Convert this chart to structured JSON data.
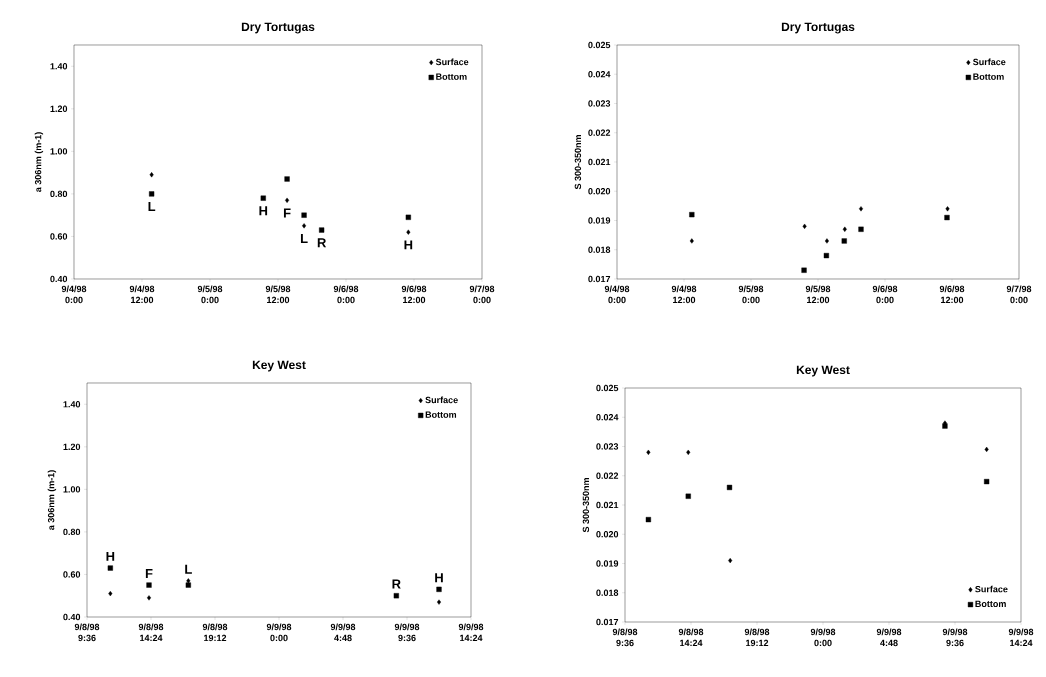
{
  "chart_data": [
    {
      "type": "scatter",
      "title": "Dry Tortugas",
      "ylabel": "a 306nm (m-1)",
      "xlim": [
        "1998-09-04T00:00",
        "1998-09-07T00:00"
      ],
      "xticks": [
        {
          "value": "1998-09-04T00:00",
          "label": "9/4/98 0:00"
        },
        {
          "value": "1998-09-04T12:00",
          "label": "9/4/98 12:00"
        },
        {
          "value": "1998-09-05T00:00",
          "label": "9/5/98 0:00"
        },
        {
          "value": "1998-09-05T12:00",
          "label": "9/5/98 12:00"
        },
        {
          "value": "1998-09-06T00:00",
          "label": "9/6/98 0:00"
        },
        {
          "value": "1998-09-06T12:00",
          "label": "9/6/98 12:00"
        },
        {
          "value": "1998-09-07T00:00",
          "label": "9/7/98 0:00"
        }
      ],
      "ylim": [
        0.4,
        1.5
      ],
      "yticks": [
        {
          "value": 0.4,
          "label": "0.40"
        },
        {
          "value": 0.6,
          "label": "0.60"
        },
        {
          "value": 0.8,
          "label": "0.80"
        },
        {
          "value": 1.0,
          "label": "1.00"
        },
        {
          "value": 1.2,
          "label": "1.20"
        },
        {
          "value": 1.4,
          "label": "1.40"
        }
      ],
      "legend": "top right",
      "series": [
        {
          "name": "Surface",
          "color": "#000000",
          "marker": "diamond",
          "x": [
            "1998-09-04T13:42",
            "1998-09-05T13:36",
            "1998-09-05T16:36",
            "1998-09-06T11:00"
          ],
          "values": [
            0.89,
            0.77,
            0.65,
            0.62
          ]
        },
        {
          "name": "Bottom",
          "color": "#000000",
          "marker": "square",
          "x": [
            "1998-09-04T13:42",
            "1998-09-05T09:24",
            "1998-09-05T13:36",
            "1998-09-05T16:36",
            "1998-09-05T19:42",
            "1998-09-06T11:00"
          ],
          "values": [
            0.8,
            0.78,
            0.87,
            0.7,
            0.63,
            0.69
          ]
        }
      ],
      "annotations": [
        {
          "text": "L",
          "x": "1998-09-04T13:42",
          "y": 0.8
        },
        {
          "text": "H",
          "x": "1998-09-05T09:24",
          "y": 0.78
        },
        {
          "text": "F",
          "x": "1998-09-05T13:36",
          "y": 0.87
        },
        {
          "text": "L",
          "x": "1998-09-05T16:36",
          "y": 0.7
        },
        {
          "text": "R",
          "x": "1998-09-05T19:42",
          "y": 0.63
        },
        {
          "text": "H",
          "x": "1998-09-06T11:00",
          "y": 0.69
        }
      ]
    },
    {
      "type": "scatter",
      "title": "Dry Tortugas",
      "ylabel": "S 300-350nm",
      "xlim": [
        "1998-09-04T00:00",
        "1998-09-07T00:00"
      ],
      "xticks": [
        {
          "value": "1998-09-04T00:00",
          "label": "9/4/98 0:00"
        },
        {
          "value": "1998-09-04T12:00",
          "label": "9/4/98 12:00"
        },
        {
          "value": "1998-09-05T00:00",
          "label": "9/5/98 0:00"
        },
        {
          "value": "1998-09-05T12:00",
          "label": "9/5/98 12:00"
        },
        {
          "value": "1998-09-06T00:00",
          "label": "9/6/98 0:00"
        },
        {
          "value": "1998-09-06T12:00",
          "label": "9/6/98 12:00"
        },
        {
          "value": "1998-09-07T00:00",
          "label": "9/7/98 0:00"
        }
      ],
      "ylim": [
        0.017,
        0.025
      ],
      "yticks": [
        {
          "value": 0.017,
          "label": "0.017"
        },
        {
          "value": 0.018,
          "label": "0.018"
        },
        {
          "value": 0.019,
          "label": "0.019"
        },
        {
          "value": 0.02,
          "label": "0.020"
        },
        {
          "value": 0.021,
          "label": "0.021"
        },
        {
          "value": 0.022,
          "label": "0.022"
        },
        {
          "value": 0.023,
          "label": "0.023"
        },
        {
          "value": 0.024,
          "label": "0.024"
        },
        {
          "value": 0.025,
          "label": "0.025"
        }
      ],
      "legend": "top right",
      "series": [
        {
          "name": "Surface",
          "color": "#000000",
          "marker": "diamond",
          "x": [
            "1998-09-04T13:24",
            "1998-09-05T09:36",
            "1998-09-05T13:36",
            "1998-09-05T16:48",
            "1998-09-05T19:42",
            "1998-09-06T11:12"
          ],
          "values": [
            0.0183,
            0.0188,
            0.0183,
            0.0187,
            0.0194,
            0.0194
          ]
        },
        {
          "name": "Bottom",
          "color": "#000000",
          "marker": "square",
          "x": [
            "1998-09-04T13:24",
            "1998-09-05T09:30",
            "1998-09-05T13:30",
            "1998-09-05T16:42",
            "1998-09-05T19:42",
            "1998-09-06T11:06"
          ],
          "values": [
            0.0192,
            0.0173,
            0.0178,
            0.0183,
            0.0187,
            0.0191
          ]
        }
      ]
    },
    {
      "type": "scatter",
      "title": "Key West",
      "ylabel": "a 306nm (m-1)",
      "xlim": [
        "1998-09-08T09:36",
        "1998-09-09T14:24"
      ],
      "xticks": [
        {
          "value": "1998-09-08T09:36",
          "label": "9/8/98 9:36"
        },
        {
          "value": "1998-09-08T14:24",
          "label": "9/8/98 14:24"
        },
        {
          "value": "1998-09-08T19:12",
          "label": "9/8/98 19:12"
        },
        {
          "value": "1998-09-09T00:00",
          "label": "9/9/98 0:00"
        },
        {
          "value": "1998-09-09T04:48",
          "label": "9/9/98 4:48"
        },
        {
          "value": "1998-09-09T09:36",
          "label": "9/9/98 9:36"
        },
        {
          "value": "1998-09-09T14:24",
          "label": "9/9/98 14:24"
        }
      ],
      "ylim": [
        0.4,
        1.5
      ],
      "yticks": [
        {
          "value": 0.4,
          "label": "0.40"
        },
        {
          "value": 0.6,
          "label": "0.60"
        },
        {
          "value": 0.8,
          "label": "0.80"
        },
        {
          "value": 1.0,
          "label": "1.00"
        },
        {
          "value": 1.2,
          "label": "1.20"
        },
        {
          "value": 1.4,
          "label": "1.40"
        }
      ],
      "legend": "top right",
      "series": [
        {
          "name": "Surface",
          "color": "#000000",
          "marker": "diamond",
          "x": [
            "1998-09-08T11:21",
            "1998-09-08T14:15",
            "1998-09-08T17:12",
            "1998-09-09T12:00"
          ],
          "values": [
            0.51,
            0.49,
            0.57,
            0.47
          ]
        },
        {
          "name": "Bottom",
          "color": "#000000",
          "marker": "square",
          "x": [
            "1998-09-08T11:21",
            "1998-09-08T14:15",
            "1998-09-08T17:12",
            "1998-09-09T08:48",
            "1998-09-09T12:00"
          ],
          "values": [
            0.63,
            0.55,
            0.55,
            0.5,
            0.53
          ]
        }
      ],
      "annotations": [
        {
          "text": "H",
          "x": "1998-09-08T11:21",
          "y": 0.63
        },
        {
          "text": "F",
          "x": "1998-09-08T14:15",
          "y": 0.55
        },
        {
          "text": "L",
          "x": "1998-09-08T17:12",
          "y": 0.55
        },
        {
          "text": "R",
          "x": "1998-09-09T08:48",
          "y": 0.5
        },
        {
          "text": "H",
          "x": "1998-09-09T12:00",
          "y": 0.53
        }
      ]
    },
    {
      "type": "scatter",
      "title": "Key West",
      "ylabel": "S 300-350nm",
      "xlim": [
        "1998-09-08T09:36",
        "1998-09-09T14:24"
      ],
      "xticks": [
        {
          "value": "1998-09-08T09:36",
          "label": "9/8/98 9:36"
        },
        {
          "value": "1998-09-08T14:24",
          "label": "9/8/98 14:24"
        },
        {
          "value": "1998-09-08T19:12",
          "label": "9/8/98 19:12"
        },
        {
          "value": "1998-09-09T00:00",
          "label": "9/9/98 0:00"
        },
        {
          "value": "1998-09-09T04:48",
          "label": "9/9/98 4:48"
        },
        {
          "value": "1998-09-09T09:36",
          "label": "9/9/98 9:36"
        },
        {
          "value": "1998-09-09T14:24",
          "label": "9/9/98 14:24"
        }
      ],
      "ylim": [
        0.017,
        0.025
      ],
      "yticks": [
        {
          "value": 0.017,
          "label": "0.017"
        },
        {
          "value": 0.018,
          "label": "0.018"
        },
        {
          "value": 0.019,
          "label": "0.019"
        },
        {
          "value": 0.02,
          "label": "0.020"
        },
        {
          "value": 0.021,
          "label": "0.021"
        },
        {
          "value": 0.022,
          "label": "0.022"
        },
        {
          "value": 0.023,
          "label": "0.023"
        },
        {
          "value": 0.024,
          "label": "0.024"
        },
        {
          "value": 0.025,
          "label": "0.025"
        }
      ],
      "legend": "bottom right",
      "series": [
        {
          "name": "Surface",
          "color": "#000000",
          "marker": "diamond",
          "x": [
            "1998-09-08T11:18",
            "1998-09-08T14:12",
            "1998-09-08T17:15",
            "1998-09-09T08:52",
            "1998-09-09T11:54"
          ],
          "values": [
            0.0228,
            0.0228,
            0.0191,
            0.0238,
            0.0229
          ]
        },
        {
          "name": "Bottom",
          "color": "#000000",
          "marker": "square",
          "x": [
            "1998-09-08T11:18",
            "1998-09-08T14:12",
            "1998-09-08T17:12",
            "1998-09-09T08:52",
            "1998-09-09T11:54"
          ],
          "values": [
            0.0205,
            0.0213,
            0.0216,
            0.0237,
            0.0218
          ]
        }
      ]
    }
  ]
}
